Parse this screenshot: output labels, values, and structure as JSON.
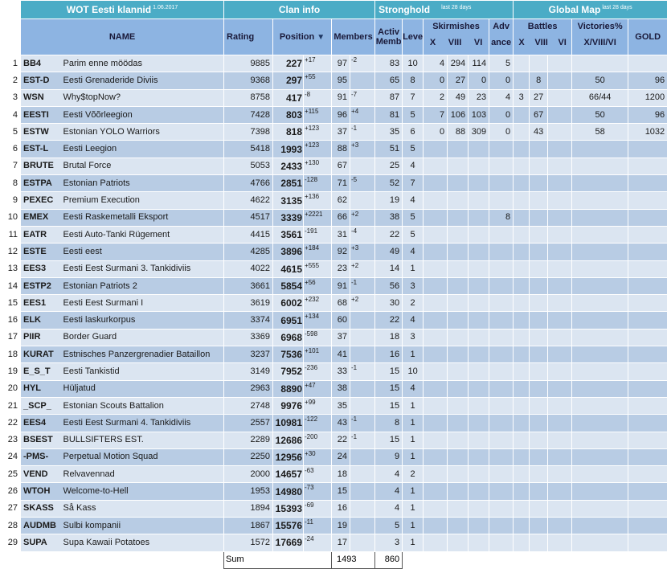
{
  "header": {
    "title": "WOT Eesti klannid",
    "date": "1.06.2017",
    "clan_info": "Clan info",
    "stronghold": "Stronghold",
    "stronghold_note": "last 28 days",
    "global_map": "Global Map",
    "global_map_note": "last 28 days"
  },
  "columns": {
    "name": "NAME",
    "rating": "Rating",
    "position": "Position",
    "position_arrow": "▼",
    "members": "Members",
    "active1": "Activ",
    "active2": "Memb",
    "level": "Level",
    "skirmishes": "Skirmishes",
    "x": "X",
    "viii": "VIII",
    "vi": "VI",
    "advance1": "Adv",
    "advance2": "ance",
    "battles": "Battles",
    "gm_x": "X",
    "gm_viii": "VIII",
    "gm_vi": "VI",
    "victories": "Victories%",
    "victories_sub": "X/VIII/VI",
    "gold": "GOLD"
  },
  "rows": [
    {
      "n": "1",
      "tag": "BB4",
      "name": "Parim enne möödas",
      "rating": "9885",
      "pos": "227",
      "pd": "+17",
      "pdt": "up",
      "mem": "97",
      "md": "-2",
      "mdt": "down",
      "act": "83",
      "lvl": "10",
      "sx": "4",
      "sviii": "294",
      "svi": "114",
      "adv": "5",
      "gbx": "",
      "gbviii": "",
      "gbvi": "",
      "vic": "",
      "gold": ""
    },
    {
      "n": "2",
      "tag": "EST-D",
      "name": "Eesti Grenaderide Diviis",
      "rating": "9368",
      "pos": "297",
      "pd": "+55",
      "pdt": "up",
      "mem": "95",
      "md": "",
      "mdt": "",
      "act": "65",
      "lvl": "8",
      "sx": "0",
      "sviii": "27",
      "svi": "0",
      "adv": "0",
      "gbx": "",
      "gbviii": "8",
      "gbvi": "",
      "vic": "50",
      "gold": "96"
    },
    {
      "n": "3",
      "tag": "WSN",
      "name": "Why$topNow?",
      "rating": "8758",
      "pos": "417",
      "pd": "-8",
      "pdt": "down",
      "mem": "91",
      "md": "-7",
      "mdt": "down",
      "act": "87",
      "lvl": "7",
      "sx": "2",
      "sviii": "49",
      "svi": "23",
      "adv": "4",
      "gbx": "3",
      "gbviii": "27",
      "gbvi": "",
      "vic": "66/44",
      "gold": "1200"
    },
    {
      "n": "4",
      "tag": "EESTI",
      "name": "Eesti Võõrleegion",
      "rating": "7428",
      "pos": "803",
      "pd": "+115",
      "pdt": "up",
      "mem": "96",
      "md": "+4",
      "mdt": "up",
      "act": "81",
      "lvl": "5",
      "sx": "7",
      "sviii": "106",
      "svi": "103",
      "adv": "0",
      "gbx": "",
      "gbviii": "67",
      "gbvi": "",
      "vic": "50",
      "gold": "96"
    },
    {
      "n": "5",
      "tag": "ESTW",
      "name": "Estonian YOLO Warriors",
      "rating": "7398",
      "pos": "818",
      "pd": "+123",
      "pdt": "up",
      "mem": "37",
      "md": "-1",
      "mdt": "down",
      "act": "35",
      "lvl": "6",
      "sx": "0",
      "sviii": "88",
      "svi": "309",
      "adv": "0",
      "gbx": "",
      "gbviii": "43",
      "gbvi": "",
      "vic": "58",
      "gold": "1032"
    },
    {
      "n": "6",
      "tag": "EST-L",
      "name": "Eesti Leegion",
      "rating": "5418",
      "pos": "1993",
      "pd": "+123",
      "pdt": "up",
      "mem": "88",
      "md": "+3",
      "mdt": "up",
      "act": "51",
      "lvl": "5",
      "sx": "",
      "sviii": "",
      "svi": "",
      "adv": "",
      "gbx": "",
      "gbviii": "",
      "gbvi": "",
      "vic": "",
      "gold": ""
    },
    {
      "n": "7",
      "tag": "BRUTE",
      "name": "Brutal Force",
      "rating": "5053",
      "pos": "2433",
      "pd": "+130",
      "pdt": "up",
      "mem": "67",
      "md": "",
      "mdt": "",
      "act": "25",
      "lvl": "4",
      "sx": "",
      "sviii": "",
      "svi": "",
      "adv": "",
      "gbx": "",
      "gbviii": "",
      "gbvi": "",
      "vic": "",
      "gold": ""
    },
    {
      "n": "8",
      "tag": "ESTPA",
      "name": "Estonian Patriots",
      "rating": "4766",
      "pos": "2851",
      "pd": "-128",
      "pdt": "down",
      "mem": "71",
      "md": "-5",
      "mdt": "down",
      "act": "52",
      "lvl": "7",
      "sx": "",
      "sviii": "",
      "svi": "",
      "adv": "",
      "gbx": "",
      "gbviii": "",
      "gbvi": "",
      "vic": "",
      "gold": ""
    },
    {
      "n": "9",
      "tag": "PEXEC",
      "name": "Premium Execution",
      "rating": "4622",
      "pos": "3135",
      "pd": "+136",
      "pdt": "up",
      "mem": "62",
      "md": "",
      "mdt": "",
      "act": "19",
      "lvl": "4",
      "sx": "",
      "sviii": "",
      "svi": "",
      "adv": "",
      "gbx": "",
      "gbviii": "",
      "gbvi": "",
      "vic": "",
      "gold": ""
    },
    {
      "n": "10",
      "tag": "EMEX",
      "name": "Eesti Raskemetalli Eksport",
      "rating": "4517",
      "pos": "3339",
      "pd": "+2221",
      "pdt": "up",
      "mem": "66",
      "md": "+2",
      "mdt": "up",
      "act": "38",
      "lvl": "5",
      "sx": "",
      "sviii": "",
      "svi": "",
      "adv": "8",
      "gbx": "",
      "gbviii": "",
      "gbvi": "",
      "vic": "",
      "gold": ""
    },
    {
      "n": "11",
      "tag": "EATR",
      "name": "Eesti Auto-Tanki Rügement",
      "rating": "4415",
      "pos": "3561",
      "pd": "-191",
      "pdt": "down",
      "mem": "31",
      "md": "-4",
      "mdt": "down",
      "act": "22",
      "lvl": "5",
      "sx": "",
      "sviii": "",
      "svi": "",
      "adv": "",
      "gbx": "",
      "gbviii": "",
      "gbvi": "",
      "vic": "",
      "gold": ""
    },
    {
      "n": "12",
      "tag": "ESTE",
      "name": "Eesti eest",
      "rating": "4285",
      "pos": "3896",
      "pd": "+184",
      "pdt": "up",
      "mem": "92",
      "md": "+3",
      "mdt": "up",
      "act": "49",
      "lvl": "4",
      "sx": "",
      "sviii": "",
      "svi": "",
      "adv": "",
      "gbx": "",
      "gbviii": "",
      "gbvi": "",
      "vic": "",
      "gold": ""
    },
    {
      "n": "13",
      "tag": "EES3",
      "name": "Eesti Eest Surmani 3. Tankidiviis",
      "rating": "4022",
      "pos": "4615",
      "pd": "+555",
      "pdt": "up",
      "mem": "23",
      "md": "+2",
      "mdt": "up",
      "act": "14",
      "lvl": "1",
      "sx": "",
      "sviii": "",
      "svi": "",
      "adv": "",
      "gbx": "",
      "gbviii": "",
      "gbvi": "",
      "vic": "",
      "gold": ""
    },
    {
      "n": "14",
      "tag": "ESTP2",
      "name": "Estonian Patriots 2",
      "rating": "3661",
      "pos": "5854",
      "pd": "+56",
      "pdt": "up",
      "mem": "91",
      "md": "-1",
      "mdt": "down",
      "act": "56",
      "lvl": "3",
      "sx": "",
      "sviii": "",
      "svi": "",
      "adv": "",
      "gbx": "",
      "gbviii": "",
      "gbvi": "",
      "vic": "",
      "gold": ""
    },
    {
      "n": "15",
      "tag": "EES1",
      "name": "Eesti Eest Surmani I",
      "rating": "3619",
      "pos": "6002",
      "pd": "+232",
      "pdt": "up",
      "mem": "68",
      "md": "+2",
      "mdt": "up",
      "act": "30",
      "lvl": "2",
      "sx": "",
      "sviii": "",
      "svi": "",
      "adv": "",
      "gbx": "",
      "gbviii": "",
      "gbvi": "",
      "vic": "",
      "gold": ""
    },
    {
      "n": "16",
      "tag": "ELK",
      "name": "Eesti laskurkorpus",
      "rating": "3374",
      "pos": "6951",
      "pd": "+134",
      "pdt": "up",
      "mem": "60",
      "md": "",
      "mdt": "",
      "act": "22",
      "lvl": "4",
      "sx": "",
      "sviii": "",
      "svi": "",
      "adv": "",
      "gbx": "",
      "gbviii": "",
      "gbvi": "",
      "vic": "",
      "gold": ""
    },
    {
      "n": "17",
      "tag": "PIIR",
      "name": "Border Guard",
      "rating": "3369",
      "pos": "6968",
      "pd": "-598",
      "pdt": "down",
      "mem": "37",
      "md": "",
      "mdt": "",
      "act": "18",
      "lvl": "3",
      "sx": "",
      "sviii": "",
      "svi": "",
      "adv": "",
      "gbx": "",
      "gbviii": "",
      "gbvi": "",
      "vic": "",
      "gold": ""
    },
    {
      "n": "18",
      "tag": "KURAT",
      "name": "Estnisches Panzergrenadier Bataillon",
      "rating": "3237",
      "pos": "7536",
      "pd": "+101",
      "pdt": "up",
      "mem": "41",
      "md": "",
      "mdt": "",
      "act": "16",
      "lvl": "1",
      "sx": "",
      "sviii": "",
      "svi": "",
      "adv": "",
      "gbx": "",
      "gbviii": "",
      "gbvi": "",
      "vic": "",
      "gold": ""
    },
    {
      "n": "19",
      "tag": "E_S_T",
      "name": "Eesti Tankistid",
      "rating": "3149",
      "pos": "7952",
      "pd": "-236",
      "pdt": "down",
      "mem": "33",
      "md": "-1",
      "mdt": "down",
      "act": "15",
      "lvl": "10",
      "sx": "",
      "sviii": "",
      "svi": "",
      "adv": "",
      "gbx": "",
      "gbviii": "",
      "gbvi": "",
      "vic": "",
      "gold": ""
    },
    {
      "n": "20",
      "tag": "HYL",
      "name": "Hüljatud",
      "rating": "2963",
      "pos": "8890",
      "pd": "+47",
      "pdt": "up",
      "mem": "38",
      "md": "",
      "mdt": "",
      "act": "15",
      "lvl": "4",
      "sx": "",
      "sviii": "",
      "svi": "",
      "adv": "",
      "gbx": "",
      "gbviii": "",
      "gbvi": "",
      "vic": "",
      "gold": ""
    },
    {
      "n": "21",
      "tag": "_SCP_",
      "name": "Estonian Scouts Battalion",
      "rating": "2748",
      "pos": "9976",
      "pd": "+99",
      "pdt": "up",
      "mem": "35",
      "md": "",
      "mdt": "",
      "act": "15",
      "lvl": "1",
      "sx": "",
      "sviii": "",
      "svi": "",
      "adv": "",
      "gbx": "",
      "gbviii": "",
      "gbvi": "",
      "vic": "",
      "gold": ""
    },
    {
      "n": "22",
      "tag": "EES4",
      "name": "Eesti Eest Surmani 4. Tankidiviis",
      "rating": "2557",
      "pos": "10981",
      "pd": "-122",
      "pdt": "down",
      "mem": "43",
      "md": "-1",
      "mdt": "down",
      "act": "8",
      "lvl": "1",
      "sx": "",
      "sviii": "",
      "svi": "",
      "adv": "",
      "gbx": "",
      "gbviii": "",
      "gbvi": "",
      "vic": "",
      "gold": ""
    },
    {
      "n": "23",
      "tag": "BSEST",
      "name": "BULLSIFTERS EST.",
      "rating": "2289",
      "pos": "12686",
      "pd": "-200",
      "pdt": "down",
      "mem": "22",
      "md": "-1",
      "mdt": "down",
      "act": "15",
      "lvl": "1",
      "sx": "",
      "sviii": "",
      "svi": "",
      "adv": "",
      "gbx": "",
      "gbviii": "",
      "gbvi": "",
      "vic": "",
      "gold": ""
    },
    {
      "n": "24",
      "tag": "-PMS-",
      "name": "Perpetual Motion Squad",
      "rating": "2250",
      "pos": "12956",
      "pd": "+30",
      "pdt": "up",
      "mem": "24",
      "md": "",
      "mdt": "",
      "act": "9",
      "lvl": "1",
      "sx": "",
      "sviii": "",
      "svi": "",
      "adv": "",
      "gbx": "",
      "gbviii": "",
      "gbvi": "",
      "vic": "",
      "gold": ""
    },
    {
      "n": "25",
      "tag": "VEND",
      "name": "Relvavennad",
      "rating": "2000",
      "pos": "14657",
      "pd": "-63",
      "pdt": "down",
      "mem": "18",
      "md": "",
      "mdt": "",
      "act": "4",
      "lvl": "2",
      "sx": "",
      "sviii": "",
      "svi": "",
      "adv": "",
      "gbx": "",
      "gbviii": "",
      "gbvi": "",
      "vic": "",
      "gold": ""
    },
    {
      "n": "26",
      "tag": "WTOH",
      "name": "Welcome-to-Hell",
      "rating": "1953",
      "pos": "14980",
      "pd": "-73",
      "pdt": "down",
      "mem": "15",
      "md": "",
      "mdt": "",
      "act": "4",
      "lvl": "1",
      "sx": "",
      "sviii": "",
      "svi": "",
      "adv": "",
      "gbx": "",
      "gbviii": "",
      "gbvi": "",
      "vic": "",
      "gold": ""
    },
    {
      "n": "27",
      "tag": "SKASS",
      "name": "Så Kass",
      "rating": "1894",
      "pos": "15393",
      "pd": "-69",
      "pdt": "down",
      "mem": "16",
      "md": "",
      "mdt": "",
      "act": "4",
      "lvl": "1",
      "sx": "",
      "sviii": "",
      "svi": "",
      "adv": "",
      "gbx": "",
      "gbviii": "",
      "gbvi": "",
      "vic": "",
      "gold": ""
    },
    {
      "n": "28",
      "tag": "AUDMB",
      "name": "Sulbi kompanii",
      "rating": "1867",
      "pos": "15576",
      "pd": "-11",
      "pdt": "down",
      "mem": "19",
      "md": "",
      "mdt": "",
      "act": "5",
      "lvl": "1",
      "sx": "",
      "sviii": "",
      "svi": "",
      "adv": "",
      "gbx": "",
      "gbviii": "",
      "gbvi": "",
      "vic": "",
      "gold": ""
    },
    {
      "n": "29",
      "tag": "SUPA",
      "name": "Supa Kawaii Potatoes",
      "rating": "1572",
      "pos": "17669",
      "pd": "-24",
      "pdt": "down",
      "mem": "17",
      "md": "",
      "mdt": "",
      "act": "3",
      "lvl": "1",
      "sx": "",
      "sviii": "",
      "svi": "",
      "adv": "",
      "gbx": "",
      "gbviii": "",
      "gbvi": "",
      "vic": "",
      "gold": ""
    }
  ],
  "summary": {
    "label": "Sum",
    "members_total": "1493",
    "active_total": "860"
  }
}
